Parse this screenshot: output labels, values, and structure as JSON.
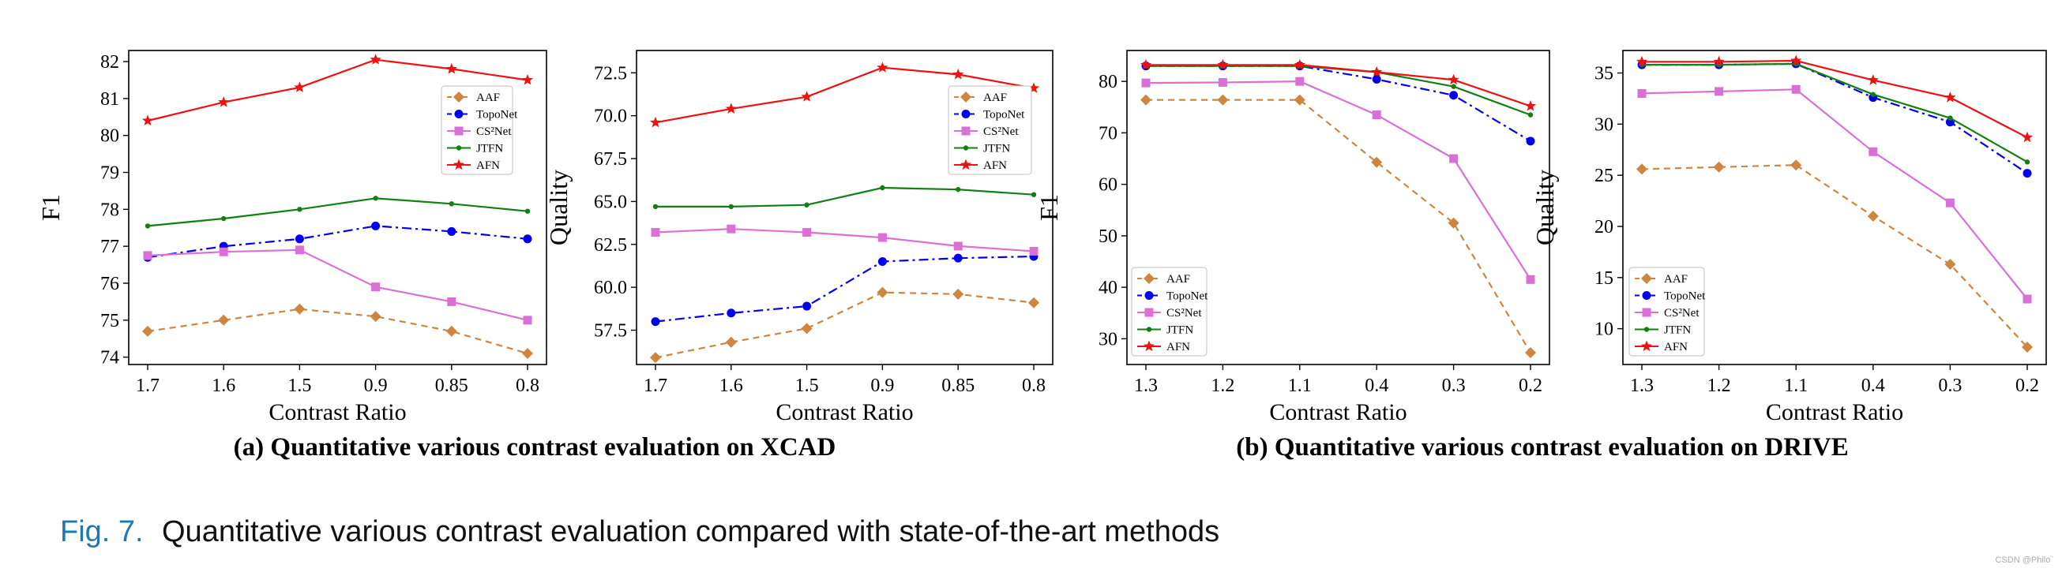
{
  "figure": {
    "subcaption_a": "(a) Quantitative various contrast evaluation on XCAD",
    "subcaption_b": "(b) Quantitative various contrast evaluation on DRIVE",
    "caption_label": "Fig. 7.",
    "caption_text": "Quantitative various contrast evaluation compared with state-of-the-art methods",
    "watermark": "CSDN @Philo`",
    "caption_color": "#1f77b4"
  },
  "legend": {
    "labels": [
      "AAF",
      "TopoNet",
      "CS²Net",
      "JTFN",
      "AFN"
    ]
  },
  "series_style": [
    {
      "color": "#cd853f",
      "dash": "8,6",
      "marker": "diamond"
    },
    {
      "color": "#0000ee",
      "dash": "12,5,3,5",
      "marker": "circle"
    },
    {
      "color": "#da70d6",
      "dash": "",
      "marker": "square"
    },
    {
      "color": "#108010",
      "dash": "",
      "marker": "dot"
    },
    {
      "color": "#ee1111",
      "dash": "",
      "marker": "star"
    }
  ],
  "chart_data": [
    {
      "type": "line",
      "title": "",
      "xlabel": "Contrast Ratio",
      "ylabel": "F1",
      "categories": [
        "1.7",
        "1.6",
        "1.5",
        "0.9",
        "0.85",
        "0.8"
      ],
      "ylim": [
        73.8,
        82.3
      ],
      "yticks": [
        74,
        75,
        76,
        77,
        78,
        79,
        80,
        81,
        82
      ],
      "ytick_labels": [
        "74",
        "75",
        "76",
        "77",
        "78",
        "79",
        "80",
        "81",
        "82"
      ],
      "legend_position": "upper-right",
      "series": [
        {
          "name": "AAF",
          "values": [
            74.7,
            75.0,
            75.3,
            75.1,
            74.7,
            74.1
          ]
        },
        {
          "name": "TopoNet",
          "values": [
            76.7,
            77.0,
            77.2,
            77.55,
            77.4,
            77.2
          ]
        },
        {
          "name": "CS²Net",
          "values": [
            76.75,
            76.85,
            76.9,
            75.9,
            75.5,
            75.0
          ]
        },
        {
          "name": "JTFN",
          "values": [
            77.55,
            77.75,
            78.0,
            78.3,
            78.15,
            77.95
          ]
        },
        {
          "name": "AFN",
          "values": [
            80.4,
            80.9,
            81.3,
            82.05,
            81.8,
            81.5
          ]
        }
      ]
    },
    {
      "type": "line",
      "title": "",
      "xlabel": "Contrast Ratio",
      "ylabel": "Quality",
      "categories": [
        "1.7",
        "1.6",
        "1.5",
        "0.9",
        "0.85",
        "0.8"
      ],
      "ylim": [
        55.5,
        73.8
      ],
      "yticks": [
        57.5,
        60.0,
        62.5,
        65.0,
        67.5,
        70.0,
        72.5
      ],
      "ytick_labels": [
        "57.5",
        "60.0",
        "62.5",
        "65.0",
        "67.5",
        "70.0",
        "72.5"
      ],
      "legend_position": "upper-right",
      "series": [
        {
          "name": "AAF",
          "values": [
            55.9,
            56.8,
            57.6,
            59.7,
            59.6,
            59.1
          ]
        },
        {
          "name": "TopoNet",
          "values": [
            58.0,
            58.5,
            58.9,
            61.5,
            61.7,
            61.8
          ]
        },
        {
          "name": "CS²Net",
          "values": [
            63.2,
            63.4,
            63.2,
            62.9,
            62.4,
            62.1
          ]
        },
        {
          "name": "JTFN",
          "values": [
            64.7,
            64.7,
            64.8,
            65.8,
            65.7,
            65.4
          ]
        },
        {
          "name": "AFN",
          "values": [
            69.6,
            70.4,
            71.1,
            72.8,
            72.4,
            71.6
          ]
        }
      ]
    },
    {
      "type": "line",
      "title": "",
      "xlabel": "Contrast Ratio",
      "ylabel": "F1",
      "categories": [
        "1.3",
        "1.2",
        "1.1",
        "0.4",
        "0.3",
        "0.2"
      ],
      "ylim": [
        25,
        86
      ],
      "yticks": [
        30,
        40,
        50,
        60,
        70,
        80
      ],
      "ytick_labels": [
        "30",
        "40",
        "50",
        "60",
        "70",
        "80"
      ],
      "legend_position": "lower-left",
      "series": [
        {
          "name": "AAF",
          "values": [
            76.4,
            76.4,
            76.4,
            64.3,
            52.5,
            27.3
          ]
        },
        {
          "name": "TopoNet",
          "values": [
            83.0,
            83.0,
            83.0,
            80.4,
            77.3,
            68.4
          ]
        },
        {
          "name": "CS²Net",
          "values": [
            79.7,
            79.8,
            80.0,
            73.5,
            65.0,
            41.5
          ]
        },
        {
          "name": "JTFN",
          "values": [
            83.0,
            83.0,
            83.0,
            81.8,
            79.0,
            73.5
          ]
        },
        {
          "name": "AFN",
          "values": [
            83.2,
            83.2,
            83.2,
            81.8,
            80.3,
            75.2
          ]
        }
      ]
    },
    {
      "type": "line",
      "title": "",
      "xlabel": "Contrast Ratio",
      "ylabel": "Quality",
      "categories": [
        "1.3",
        "1.2",
        "1.1",
        "0.4",
        "0.3",
        "0.2"
      ],
      "ylim": [
        6.5,
        37.2
      ],
      "yticks": [
        10,
        15,
        20,
        25,
        30,
        35
      ],
      "ytick_labels": [
        "10",
        "15",
        "20",
        "25",
        "30",
        "35"
      ],
      "legend_position": "lower-left",
      "series": [
        {
          "name": "AAF",
          "values": [
            25.6,
            25.8,
            26.0,
            21.0,
            16.3,
            8.2
          ]
        },
        {
          "name": "TopoNet",
          "values": [
            35.8,
            35.8,
            35.9,
            32.6,
            30.2,
            25.2
          ]
        },
        {
          "name": "CS²Net",
          "values": [
            33.0,
            33.2,
            33.4,
            27.3,
            22.3,
            12.9
          ]
        },
        {
          "name": "JTFN",
          "values": [
            35.8,
            35.8,
            35.9,
            32.9,
            30.6,
            26.3
          ]
        },
        {
          "name": "AFN",
          "values": [
            36.1,
            36.1,
            36.2,
            34.3,
            32.6,
            28.7
          ]
        }
      ]
    }
  ]
}
